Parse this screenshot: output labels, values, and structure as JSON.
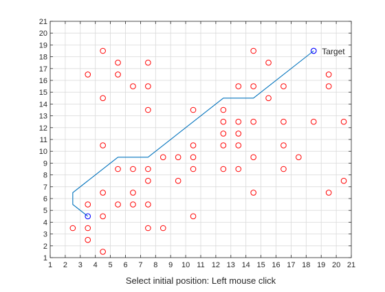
{
  "chart_data": {
    "type": "scatter",
    "xlabel": "Select initial position: Left mouse click",
    "ylabel": "",
    "title": "",
    "xlim": [
      1,
      21
    ],
    "ylim": [
      1,
      21
    ],
    "xticks": [
      1,
      2,
      3,
      4,
      5,
      6,
      7,
      8,
      9,
      10,
      11,
      12,
      13,
      14,
      15,
      16,
      17,
      18,
      19,
      20,
      21
    ],
    "yticks": [
      1,
      2,
      3,
      4,
      5,
      6,
      7,
      8,
      9,
      10,
      11,
      12,
      13,
      14,
      15,
      16,
      17,
      18,
      19,
      20,
      21
    ],
    "grid": true,
    "colors": {
      "obstacles": "#ff0000",
      "path": "#0072bd",
      "endpoints": "#0000ff",
      "grid": "#d9d9d9",
      "axes": "#262626"
    },
    "obstacles": [
      [
        2.5,
        3.5
      ],
      [
        3.5,
        5.5
      ],
      [
        3.5,
        3.5
      ],
      [
        3.5,
        2.5
      ],
      [
        3.5,
        16.5
      ],
      [
        4.5,
        18.5
      ],
      [
        4.5,
        14.5
      ],
      [
        4.5,
        10.5
      ],
      [
        4.5,
        6.5
      ],
      [
        4.5,
        4.5
      ],
      [
        4.5,
        1.5
      ],
      [
        5.5,
        17.5
      ],
      [
        5.5,
        16.5
      ],
      [
        5.5,
        8.5
      ],
      [
        5.5,
        5.5
      ],
      [
        6.5,
        15.5
      ],
      [
        6.5,
        8.5
      ],
      [
        6.5,
        6.5
      ],
      [
        6.5,
        5.5
      ],
      [
        7.5,
        17.5
      ],
      [
        7.5,
        15.5
      ],
      [
        7.5,
        13.5
      ],
      [
        7.5,
        8.5
      ],
      [
        7.5,
        7.5
      ],
      [
        7.5,
        5.5
      ],
      [
        7.5,
        3.5
      ],
      [
        8.5,
        9.5
      ],
      [
        8.5,
        3.5
      ],
      [
        9.5,
        9.5
      ],
      [
        9.5,
        7.5
      ],
      [
        10.5,
        13.5
      ],
      [
        10.5,
        10.5
      ],
      [
        10.5,
        9.5
      ],
      [
        10.5,
        8.5
      ],
      [
        10.5,
        4.5
      ],
      [
        12.5,
        13.5
      ],
      [
        12.5,
        12.5
      ],
      [
        12.5,
        11.5
      ],
      [
        12.5,
        10.5
      ],
      [
        12.5,
        8.5
      ],
      [
        13.5,
        15.5
      ],
      [
        13.5,
        12.5
      ],
      [
        13.5,
        11.5
      ],
      [
        13.5,
        10.5
      ],
      [
        13.5,
        8.5
      ],
      [
        14.5,
        18.5
      ],
      [
        14.5,
        15.5
      ],
      [
        14.5,
        12.5
      ],
      [
        14.5,
        9.5
      ],
      [
        14.5,
        6.5
      ],
      [
        15.5,
        17.5
      ],
      [
        15.5,
        14.5
      ],
      [
        16.5,
        15.5
      ],
      [
        16.5,
        12.5
      ],
      [
        16.5,
        10.5
      ],
      [
        16.5,
        8.5
      ],
      [
        17.5,
        9.5
      ],
      [
        18.5,
        12.5
      ],
      [
        19.5,
        16.5
      ],
      [
        19.5,
        15.5
      ],
      [
        19.5,
        6.5
      ],
      [
        20.5,
        12.5
      ],
      [
        20.5,
        7.5
      ]
    ],
    "path": [
      [
        3.5,
        4.5
      ],
      [
        2.5,
        5.5
      ],
      [
        2.5,
        6.5
      ],
      [
        5.5,
        9.5
      ],
      [
        7.5,
        9.5
      ],
      [
        12.5,
        14.5
      ],
      [
        14.5,
        14.5
      ],
      [
        18.5,
        18.5
      ]
    ],
    "start": [
      3.5,
      4.5
    ],
    "target": [
      18.5,
      18.5
    ],
    "target_label": "Target"
  }
}
